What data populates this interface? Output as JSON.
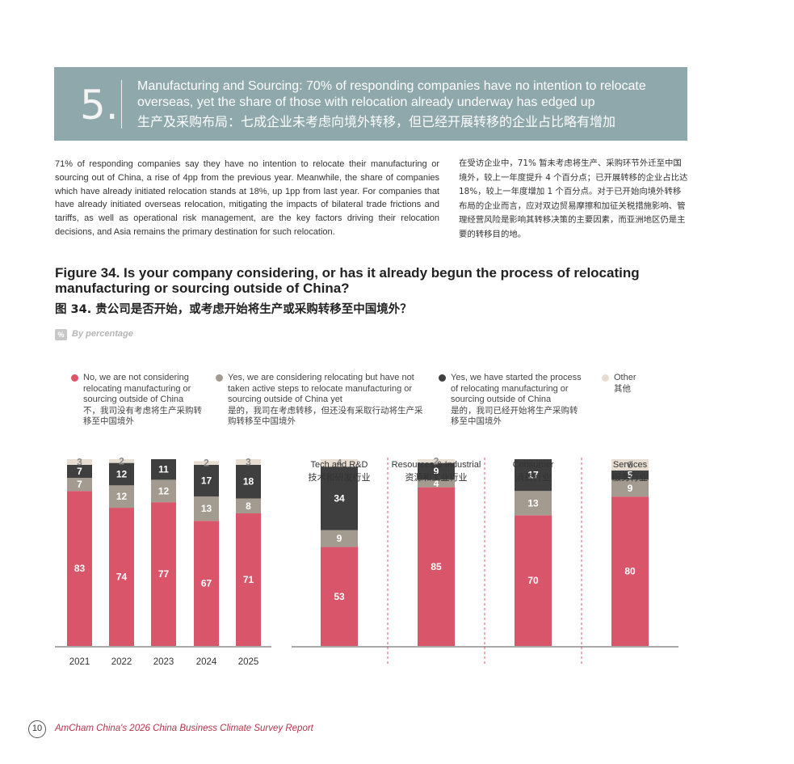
{
  "section": {
    "number": "5.",
    "title": "Manufacturing and Sourcing: 70% of responding companies have no intention to relocate overseas, yet the share of those with relocation already underway has edged up",
    "title_cn": "生产及采购布局：七成企业未考虑向境外转移，但已经开展转移的企业占比略有增加"
  },
  "intro": {
    "en": "71% of responding companies say they have no intention to relocate their manufacturing or sourcing out of China, a rise of 4pp from the previous year. Meanwhile, the share of companies which have already initiated relocation stands at 18%, up 1pp from last year. For companies that have already initiated overseas relocation, mitigating the impacts of bilateral trade frictions and tariffs, as well as operational risk management, are the key factors driving their relocation decisions, and Asia remains the primary destination for such relocation.",
    "cn": "在受访企业中，71% 暂未考虑将生产、采购环节外迁至中国境外，较上一年度提升 4 个百分点；已开展转移的企业占比达 18%，较上一年度增加 1 个百分点。对于已开始向境外转移布局的企业而言，应对双边贸易摩擦和加征关税措施影响、管理经营风险是影响其转移决策的主要因素，而亚洲地区仍是主要的转移目的地。"
  },
  "figure": {
    "title": "Figure 34. Is your company considering, or has it already begun the process of relocating manufacturing or sourcing outside of China?",
    "title_cn": "图 34. 贵公司是否开始，或考虑开始将生产或采购转移至中国境外？",
    "badge": "%",
    "unit_note": "By percentage"
  },
  "legend": [
    {
      "en": "No, we are not considering relocating manufacturing or sourcing outside of China",
      "cn": "不，我司没有考虑将生产采购转移至中国境外",
      "color": "#d9556a"
    },
    {
      "en": "Yes, we are considering relocating but have not taken active steps to relocate manufacturing or sourcing outside of China yet",
      "cn": "是的，我司在考虑转移，但还没有采取行动将生产采购转移至中国境外",
      "color": "#a39b8f"
    },
    {
      "en": "Yes, we have started the process of relocating manufacturing or sourcing outside of China",
      "cn": "是的，我司已经开始将生产采购转移至中国境外",
      "color": "#3f3f3f"
    },
    {
      "en": "Other",
      "cn": "其他",
      "color": "#e6ddd0"
    }
  ],
  "chart_data": [
    {
      "type": "bar",
      "stacked": true,
      "categories": [
        "2021",
        "2022",
        "2023",
        "2024",
        "2025"
      ],
      "series": [
        {
          "name": "No, we are not considering relocating manufacturing or sourcing outside of China",
          "values": [
            83,
            74,
            77,
            67,
            71
          ],
          "color": "#d9556a"
        },
        {
          "name": "Yes, we are considering relocating but have not taken active steps to relocate manufacturing or sourcing outside of China yet",
          "values": [
            7,
            12,
            12,
            13,
            8
          ],
          "color": "#a39b8f"
        },
        {
          "name": "Yes, we have started the process of relocating manufacturing or sourcing outside of China",
          "values": [
            7,
            12,
            11,
            17,
            18
          ],
          "color": "#3f3f3f"
        },
        {
          "name": "Other",
          "values": [
            3,
            2,
            0,
            2,
            3
          ],
          "color": "#e6ddd0"
        }
      ],
      "data_labels": [
        [
          "83",
          "74",
          "77",
          "67",
          "71"
        ],
        [
          "7",
          "12",
          "12",
          "13",
          "8"
        ],
        [
          "7",
          "12",
          "11",
          "17",
          "18"
        ],
        [
          "3",
          "2",
          "",
          "2",
          "3"
        ]
      ],
      "ylim": [
        0,
        100
      ]
    },
    {
      "type": "bar",
      "stacked": true,
      "categories": [
        "Tech and R&D",
        "Resources & Industrial",
        "Consumer",
        "Services"
      ],
      "categories_cn": [
        "技术和研发行业",
        "资源和工业行业",
        "消费行业",
        "服务行业"
      ],
      "series": [
        {
          "name": "No, we are not considering relocating manufacturing or sourcing outside of China",
          "values": [
            53,
            85,
            70,
            80
          ],
          "color": "#d9556a"
        },
        {
          "name": "Yes, we are considering relocating but have not taken active steps to relocate manufacturing or sourcing outside of China yet",
          "values": [
            9,
            4,
            13,
            9
          ],
          "color": "#a39b8f"
        },
        {
          "name": "Yes, we have started the process of relocating manufacturing or sourcing outside of China",
          "values": [
            34,
            9,
            17,
            5
          ],
          "color": "#3f3f3f"
        },
        {
          "name": "Other",
          "values": [
            4,
            2,
            0,
            6
          ],
          "color": "#e6ddd0"
        }
      ],
      "data_labels": [
        [
          "53",
          "85",
          "70",
          "80"
        ],
        [
          "9",
          "4",
          "13",
          "9"
        ],
        [
          "34",
          "9",
          "17",
          "5"
        ],
        [
          "4",
          "2",
          "",
          "6"
        ]
      ],
      "ylim": [
        0,
        100
      ]
    }
  ],
  "footer": {
    "page": "10",
    "text": "AmCham China's 2026 China Business Climate Survey Report"
  }
}
